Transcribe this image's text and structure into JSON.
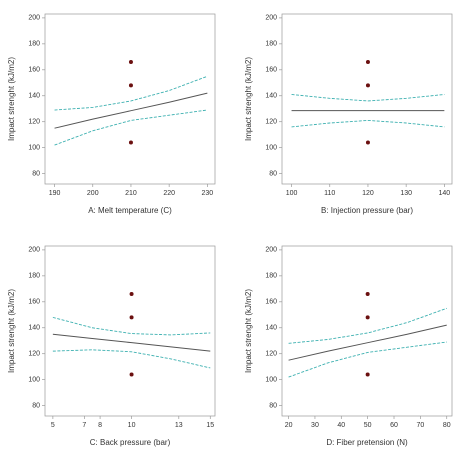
{
  "chart_data": [
    {
      "type": "line",
      "x_label": "A: Melt temperature (C)",
      "y_label": "Impact strenght (kJ/m2)",
      "xlim": [
        187.5,
        232
      ],
      "ylim": [
        72,
        203
      ],
      "xticks": [
        190,
        200,
        210,
        220,
        230
      ],
      "yticks": [
        80,
        100,
        120,
        140,
        160,
        180,
        200
      ],
      "x": [
        190,
        200,
        210,
        220,
        230
      ],
      "series": [
        {
          "color": "#555555",
          "dashed": false,
          "values": [
            115,
            122,
            128.5,
            135,
            142
          ]
        },
        {
          "color": "#3cb0b0",
          "dashed": true,
          "values": [
            129,
            131,
            136,
            144,
            155
          ]
        },
        {
          "color": "#3cb0b0",
          "dashed": true,
          "values": [
            102,
            113,
            121,
            125,
            129
          ]
        }
      ],
      "points": {
        "color": "#6b1010",
        "x": [
          210,
          210,
          210
        ],
        "values": [
          166,
          148,
          104
        ]
      }
    },
    {
      "type": "line",
      "x_label": "B: Injection pressure (bar)",
      "y_label": "Impact strenght (kJ/m2)",
      "xlim": [
        97.5,
        142
      ],
      "ylim": [
        72,
        203
      ],
      "xticks": [
        100,
        110,
        120,
        130,
        140
      ],
      "yticks": [
        80,
        100,
        120,
        140,
        160,
        180,
        200
      ],
      "x": [
        100,
        110,
        120,
        130,
        140
      ],
      "series": [
        {
          "color": "#555555",
          "dashed": false,
          "values": [
            128.5,
            128.5,
            128.5,
            128.5,
            128.5
          ]
        },
        {
          "color": "#3cb0b0",
          "dashed": true,
          "values": [
            141,
            138,
            136,
            138,
            141
          ]
        },
        {
          "color": "#3cb0b0",
          "dashed": true,
          "values": [
            116,
            119,
            121,
            119,
            116
          ]
        }
      ],
      "points": {
        "color": "#6b1010",
        "x": [
          120,
          120,
          120
        ],
        "values": [
          166,
          148,
          104
        ]
      }
    },
    {
      "type": "line",
      "x_label": "C: Back pressure (bar)",
      "y_label": "Impact strenght (kJ/m2)",
      "xlim": [
        4.5,
        15.3
      ],
      "ylim": [
        72,
        203
      ],
      "xticks": [
        5,
        7,
        8,
        10,
        13,
        15
      ],
      "yticks": [
        80,
        100,
        120,
        140,
        160,
        180,
        200
      ],
      "x": [
        5,
        7.5,
        10,
        12.5,
        15
      ],
      "series": [
        {
          "color": "#555555",
          "dashed": false,
          "values": [
            135,
            131.75,
            128.5,
            125.25,
            122
          ]
        },
        {
          "color": "#3cb0b0",
          "dashed": true,
          "values": [
            148,
            140,
            135.5,
            134.5,
            136
          ]
        },
        {
          "color": "#3cb0b0",
          "dashed": true,
          "values": [
            122,
            123,
            121.5,
            116,
            109
          ]
        }
      ],
      "points": {
        "color": "#6b1010",
        "x": [
          10,
          10,
          10
        ],
        "values": [
          166,
          148,
          104
        ]
      }
    },
    {
      "type": "line",
      "x_label": "D: Fiber pretension (N)",
      "y_label": "Impact strenght (kJ/m2)",
      "xlim": [
        17.5,
        82
      ],
      "ylim": [
        72,
        203
      ],
      "xticks": [
        20,
        30,
        40,
        50,
        60,
        70,
        80
      ],
      "yticks": [
        80,
        100,
        120,
        140,
        160,
        180,
        200
      ],
      "x": [
        20,
        35,
        50,
        65,
        80
      ],
      "series": [
        {
          "color": "#555555",
          "dashed": false,
          "values": [
            115,
            122,
            128.5,
            135,
            142
          ]
        },
        {
          "color": "#3cb0b0",
          "dashed": true,
          "values": [
            128,
            131,
            136,
            144,
            155
          ]
        },
        {
          "color": "#3cb0b0",
          "dashed": true,
          "values": [
            102,
            113,
            121,
            125,
            129
          ]
        }
      ],
      "points": {
        "color": "#6b1010",
        "x": [
          50,
          50,
          50
        ],
        "values": [
          166,
          148,
          104
        ]
      }
    }
  ]
}
